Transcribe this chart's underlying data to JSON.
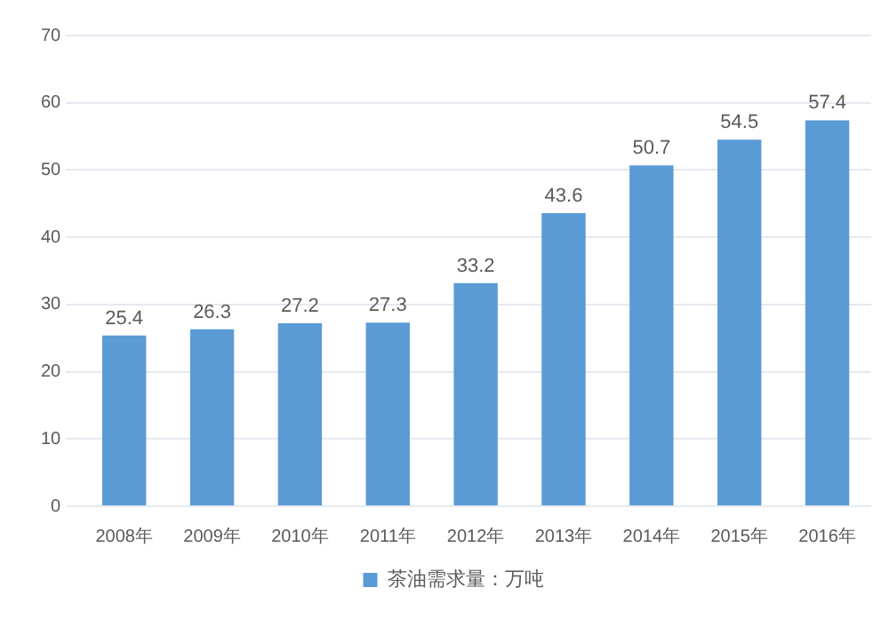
{
  "chart_data": {
    "type": "bar",
    "categories": [
      "2008年",
      "2009年",
      "2010年",
      "2011年",
      "2012年",
      "2013年",
      "2014年",
      "2015年",
      "2016年"
    ],
    "series": [
      {
        "name": "茶油需求量：万吨",
        "color": "#5b9bd5",
        "values": [
          25.4,
          26.3,
          27.2,
          27.3,
          33.2,
          43.6,
          50.7,
          54.5,
          57.4
        ]
      }
    ],
    "ylim": [
      0,
      70
    ],
    "yticks": [
      0,
      10,
      20,
      30,
      40,
      50,
      60,
      70
    ],
    "grid": "y",
    "legend": "bottom",
    "data_labels": true
  }
}
